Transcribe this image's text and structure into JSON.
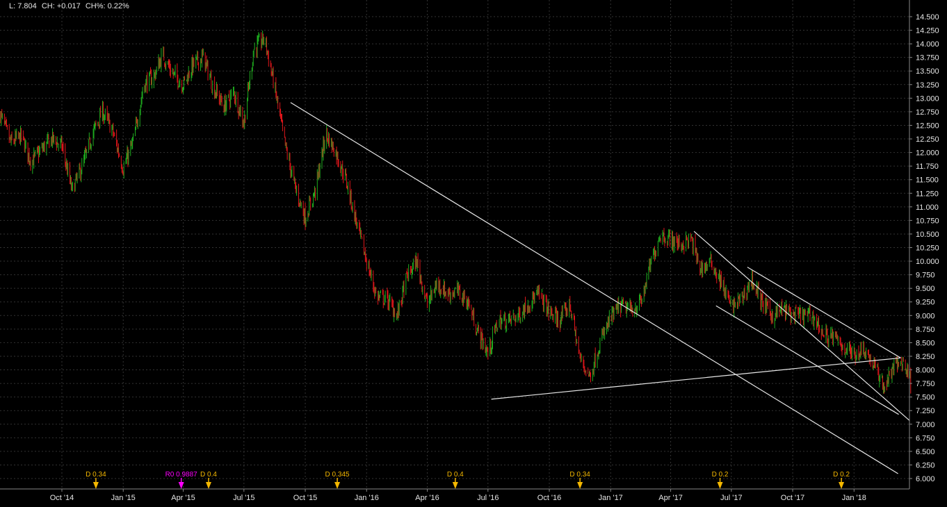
{
  "header": {
    "last": "L: 7.804",
    "change": "CH: +0.017",
    "change_pct": "CH%: 0.22%"
  },
  "colors": {
    "background": "#000000",
    "up": "#1fae1f",
    "down": "#e0161b",
    "trendline": "#e8e8e8",
    "dividend_marker": "#f5b800",
    "split_marker": "#ff00ff",
    "grid": "#333333",
    "axis_text": "#e6e6e6"
  },
  "chart_data": {
    "type": "candlestick",
    "title": "",
    "xlabel": "",
    "ylabel": "",
    "ylim": [
      6.0,
      14.5
    ],
    "xlim": [
      "2014-06-30",
      "2018-03-27"
    ],
    "grid": true,
    "y_axis_position": "right",
    "y_ticks": [
      "6.000",
      "6.250",
      "6.500",
      "6.750",
      "7.000",
      "7.250",
      "7.500",
      "7.750",
      "8.000",
      "8.250",
      "8.500",
      "8.750",
      "9.000",
      "9.250",
      "9.500",
      "9.750",
      "10.000",
      "10.250",
      "10.500",
      "10.750",
      "11.000",
      "11.250",
      "11.500",
      "11.750",
      "12.000",
      "12.250",
      "12.500",
      "12.750",
      "13.000",
      "13.250",
      "13.500",
      "13.750",
      "14.000",
      "14.250",
      "14.500"
    ],
    "x_ticks": [
      {
        "label": "Oct '14",
        "date": "2014-10-01"
      },
      {
        "label": "Jan '15",
        "date": "2015-01-01"
      },
      {
        "label": "Apr '15",
        "date": "2015-04-01"
      },
      {
        "label": "Jul '15",
        "date": "2015-07-01"
      },
      {
        "label": "Oct '15",
        "date": "2015-10-01"
      },
      {
        "label": "Jan '16",
        "date": "2016-01-01"
      },
      {
        "label": "Apr '16",
        "date": "2016-04-01"
      },
      {
        "label": "Jul '16",
        "date": "2016-07-01"
      },
      {
        "label": "Oct '16",
        "date": "2016-10-01"
      },
      {
        "label": "Jan '17",
        "date": "2017-01-01"
      },
      {
        "label": "Apr '17",
        "date": "2017-04-01"
      },
      {
        "label": "Jul '17",
        "date": "2017-07-01"
      },
      {
        "label": "Oct '17",
        "date": "2017-10-01"
      },
      {
        "label": "Jan '18",
        "date": "2018-01-01"
      }
    ],
    "close_series": [
      [
        "2014-07-01",
        12.7
      ],
      [
        "2014-07-16",
        12.18
      ],
      [
        "2014-08-01",
        12.3
      ],
      [
        "2014-08-16",
        11.83
      ],
      [
        "2014-09-01",
        12.06
      ],
      [
        "2014-09-16",
        12.25
      ],
      [
        "2014-10-01",
        12.12
      ],
      [
        "2014-10-16",
        11.3
      ],
      [
        "2014-11-01",
        11.75
      ],
      [
        "2014-11-16",
        12.35
      ],
      [
        "2014-12-01",
        12.75
      ],
      [
        "2014-12-16",
        12.4
      ],
      [
        "2015-01-01",
        11.7
      ],
      [
        "2015-01-16",
        12.2
      ],
      [
        "2015-02-01",
        13.25
      ],
      [
        "2015-02-16",
        13.4
      ],
      [
        "2015-03-01",
        13.8
      ],
      [
        "2015-03-16",
        13.45
      ],
      [
        "2015-04-01",
        13.25
      ],
      [
        "2015-04-16",
        13.62
      ],
      [
        "2015-05-01",
        13.76
      ],
      [
        "2015-05-16",
        13.2
      ],
      [
        "2015-06-01",
        12.85
      ],
      [
        "2015-06-16",
        13.1
      ],
      [
        "2015-07-01",
        12.55
      ],
      [
        "2015-07-16",
        13.91
      ],
      [
        "2015-08-01",
        14.1
      ],
      [
        "2015-08-16",
        13.2
      ],
      [
        "2015-09-01",
        12.12
      ],
      [
        "2015-09-16",
        11.35
      ],
      [
        "2015-10-01",
        10.8
      ],
      [
        "2015-10-16",
        11.3
      ],
      [
        "2015-11-01",
        12.35
      ],
      [
        "2015-11-16",
        12.0
      ],
      [
        "2015-12-01",
        11.5
      ],
      [
        "2015-12-16",
        10.75
      ],
      [
        "2016-01-01",
        10.0
      ],
      [
        "2016-01-16",
        9.35
      ],
      [
        "2016-02-01",
        9.3
      ],
      [
        "2016-02-16",
        9.0
      ],
      [
        "2016-03-01",
        9.7
      ],
      [
        "2016-03-16",
        10.0
      ],
      [
        "2016-04-01",
        9.2
      ],
      [
        "2016-04-16",
        9.6
      ],
      [
        "2016-05-01",
        9.4
      ],
      [
        "2016-05-16",
        9.45
      ],
      [
        "2016-06-01",
        9.25
      ],
      [
        "2016-06-16",
        8.7
      ],
      [
        "2016-07-01",
        8.3
      ],
      [
        "2016-07-16",
        8.9
      ],
      [
        "2016-08-01",
        8.9
      ],
      [
        "2016-08-16",
        9.0
      ],
      [
        "2016-09-01",
        9.25
      ],
      [
        "2016-09-16",
        9.4
      ],
      [
        "2016-10-01",
        9.06
      ],
      [
        "2016-10-16",
        8.9
      ],
      [
        "2016-11-01",
        9.2
      ],
      [
        "2016-11-16",
        8.2
      ],
      [
        "2016-12-01",
        7.88
      ],
      [
        "2016-12-16",
        8.5
      ],
      [
        "2017-01-01",
        8.95
      ],
      [
        "2017-01-16",
        9.18
      ],
      [
        "2017-02-01",
        9.1
      ],
      [
        "2017-02-16",
        9.25
      ],
      [
        "2017-03-01",
        9.9
      ],
      [
        "2017-03-16",
        10.5
      ],
      [
        "2017-04-01",
        10.4
      ],
      [
        "2017-04-16",
        10.3
      ],
      [
        "2017-05-01",
        10.4
      ],
      [
        "2017-05-16",
        9.85
      ],
      [
        "2017-06-01",
        9.98
      ],
      [
        "2017-06-16",
        9.6
      ],
      [
        "2017-07-01",
        9.15
      ],
      [
        "2017-07-16",
        9.3
      ],
      [
        "2017-08-01",
        9.65
      ],
      [
        "2017-08-16",
        9.25
      ],
      [
        "2017-09-01",
        8.99
      ],
      [
        "2017-09-16",
        9.12
      ],
      [
        "2017-10-01",
        9.0
      ],
      [
        "2017-10-16",
        9.0
      ],
      [
        "2017-11-01",
        8.99
      ],
      [
        "2017-11-16",
        8.65
      ],
      [
        "2017-12-01",
        8.6
      ],
      [
        "2017-12-16",
        8.42
      ],
      [
        "2018-01-01",
        8.29
      ],
      [
        "2018-01-16",
        8.4
      ],
      [
        "2018-02-01",
        8.05
      ],
      [
        "2018-02-16",
        7.68
      ],
      [
        "2018-03-01",
        8.05
      ],
      [
        "2018-03-16",
        8.16
      ],
      [
        "2018-03-27",
        7.8
      ]
    ],
    "trendlines": [
      {
        "from": [
          "2015-09-09",
          12.92
        ],
        "to": [
          "2018-03-08",
          6.09
        ]
      },
      {
        "from": [
          "2016-07-06",
          7.46
        ],
        "to": [
          "2018-03-12",
          8.22
        ]
      },
      {
        "from": [
          "2017-05-06",
          10.55
        ],
        "to": [
          "2018-03-25",
          7.07
        ]
      },
      {
        "from": [
          "2017-06-08",
          9.18
        ],
        "to": [
          "2018-03-09",
          7.18
        ]
      },
      {
        "from": [
          "2017-07-25",
          9.89
        ],
        "to": [
          "2018-03-12",
          8.22
        ]
      }
    ],
    "events": [
      {
        "label": "D 0.34",
        "date": "2014-11-21",
        "type": "dividend"
      },
      {
        "label": "R0 0.9887",
        "date": "2015-03-29",
        "type": "split"
      },
      {
        "label": "D 0.4",
        "date": "2015-05-09",
        "type": "dividend"
      },
      {
        "label": "D 0.345",
        "date": "2015-11-18",
        "type": "dividend"
      },
      {
        "label": "D 0.4",
        "date": "2016-05-13",
        "type": "dividend"
      },
      {
        "label": "D 0.34",
        "date": "2016-11-16",
        "type": "dividend"
      },
      {
        "label": "D 0.2",
        "date": "2017-06-14",
        "type": "dividend"
      },
      {
        "label": "D 0.2",
        "date": "2017-12-13",
        "type": "dividend"
      }
    ]
  }
}
